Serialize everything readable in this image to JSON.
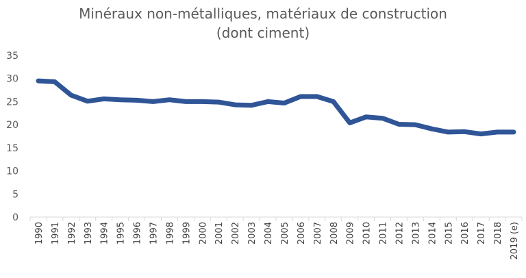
{
  "chart_data": {
    "type": "line",
    "title_line1": "Minéraux non-métalliques, matériaux de construction",
    "title_line2": "(dont ciment)",
    "xlabel": "",
    "ylabel": "",
    "ylim": [
      0,
      35
    ],
    "yticks": [
      0,
      5,
      10,
      15,
      20,
      25,
      30,
      35
    ],
    "grid": false,
    "legend": "none",
    "color": "#2F5597",
    "categories": [
      "1990",
      "1991",
      "1992",
      "1993",
      "1994",
      "1995",
      "1996",
      "1997",
      "1998",
      "1999",
      "2000",
      "2001",
      "2002",
      "2003",
      "2004",
      "2005",
      "2006",
      "2007",
      "2008",
      "2009",
      "2010",
      "2011",
      "2012",
      "2013",
      "2014",
      "2015",
      "2016",
      "2017",
      "2018",
      "2019 (e)"
    ],
    "values": [
      29.5,
      29.3,
      26.4,
      25.1,
      25.6,
      25.4,
      25.3,
      25.0,
      25.4,
      25.0,
      25.0,
      24.9,
      24.3,
      24.2,
      25.0,
      24.7,
      26.1,
      26.1,
      25.0,
      20.4,
      21.7,
      21.4,
      20.1,
      20.0,
      19.1,
      18.4,
      18.5,
      18.0,
      18.4,
      18.4
    ]
  }
}
